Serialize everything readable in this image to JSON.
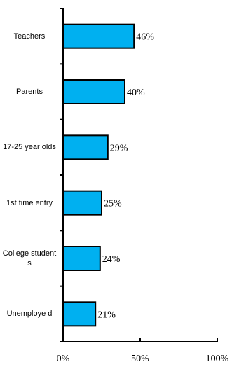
{
  "chart_data": {
    "type": "bar",
    "orientation": "horizontal",
    "categories": [
      "Teachers",
      "Parents",
      "17-25 year olds",
      "1st time entry",
      "College students",
      "Unemployed"
    ],
    "category_labels": [
      "Teachers",
      "Parents",
      "17-25 year olds",
      "1st time entry",
      "College students",
      "Unemploye d"
    ],
    "values": [
      46,
      40,
      29,
      25,
      24,
      21
    ],
    "data_labels": [
      "46%",
      "40%",
      "29%",
      "25%",
      "24%",
      "21%"
    ],
    "xlim": [
      0,
      100
    ],
    "x_ticks": [
      0,
      50,
      100
    ],
    "x_tick_labels": [
      "0%",
      "50%",
      "100%"
    ],
    "bar_color": "#00b0f0",
    "bar_edge_color": "#000000",
    "grid": false,
    "legend": "none"
  }
}
